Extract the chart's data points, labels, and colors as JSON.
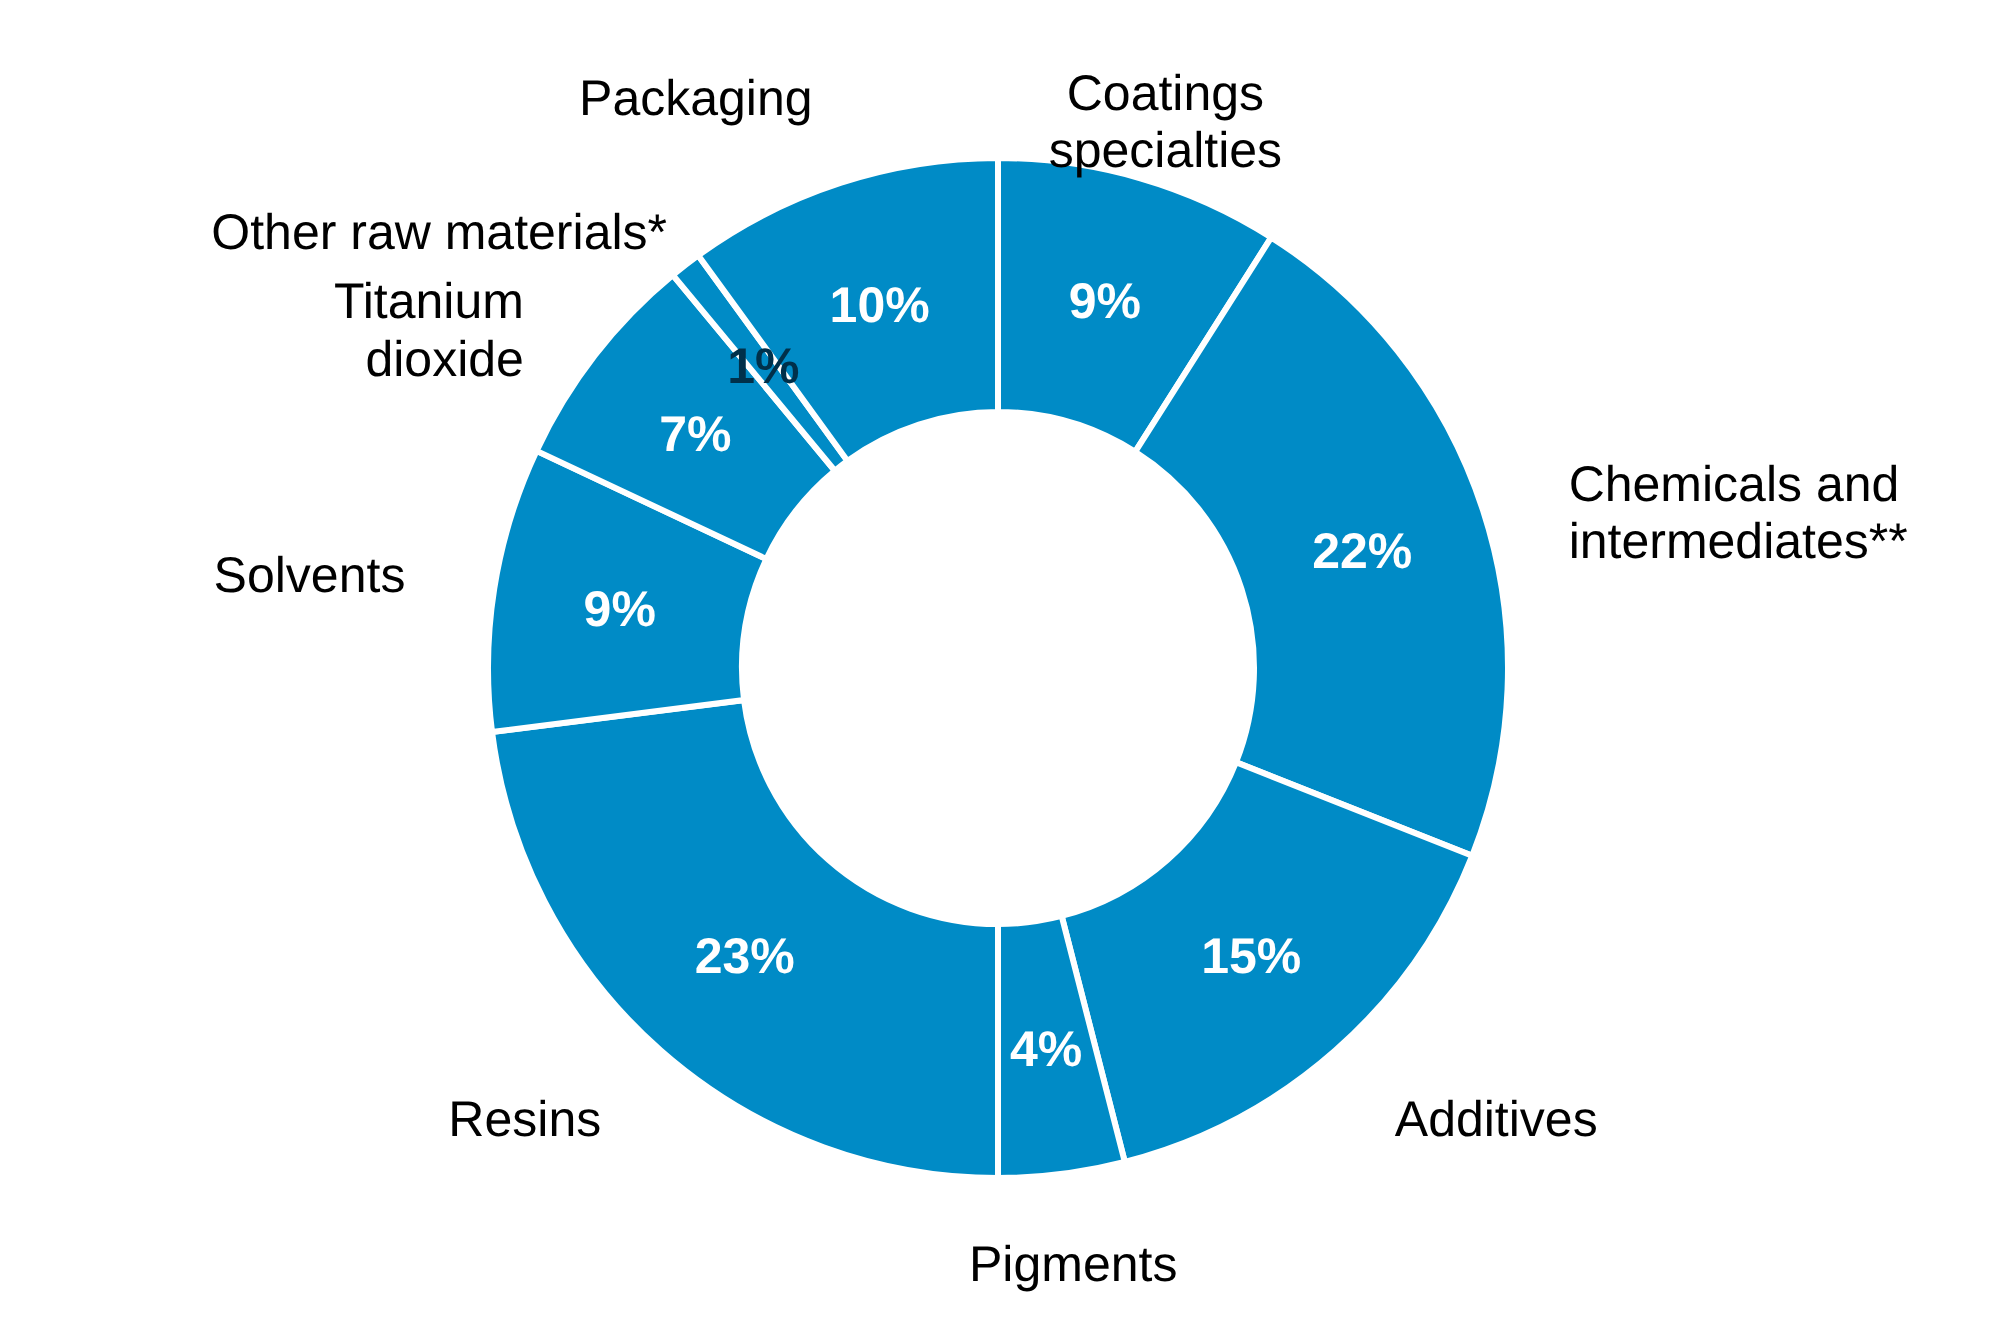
{
  "chart_data": {
    "type": "donut",
    "categories": [
      "Coatings specialties",
      "Chemicals and intermediates**",
      "Additives",
      "Pigments",
      "Resins",
      "Solvents",
      "Titanium dioxide",
      "Other raw materials*",
      "Packaging"
    ],
    "values": [
      9,
      22,
      15,
      4,
      23,
      9,
      7,
      1,
      10
    ],
    "value_labels": [
      "9%",
      "22%",
      "15%",
      "4%",
      "23%",
      "9%",
      "7%",
      "1%",
      "10%"
    ],
    "colors": [
      "#008bc6",
      "#008bc6",
      "#008bc6",
      "#008bc6",
      "#008bc6",
      "#008bc6",
      "#008bc6",
      "#008bc6",
      "#008bc6"
    ]
  }
}
